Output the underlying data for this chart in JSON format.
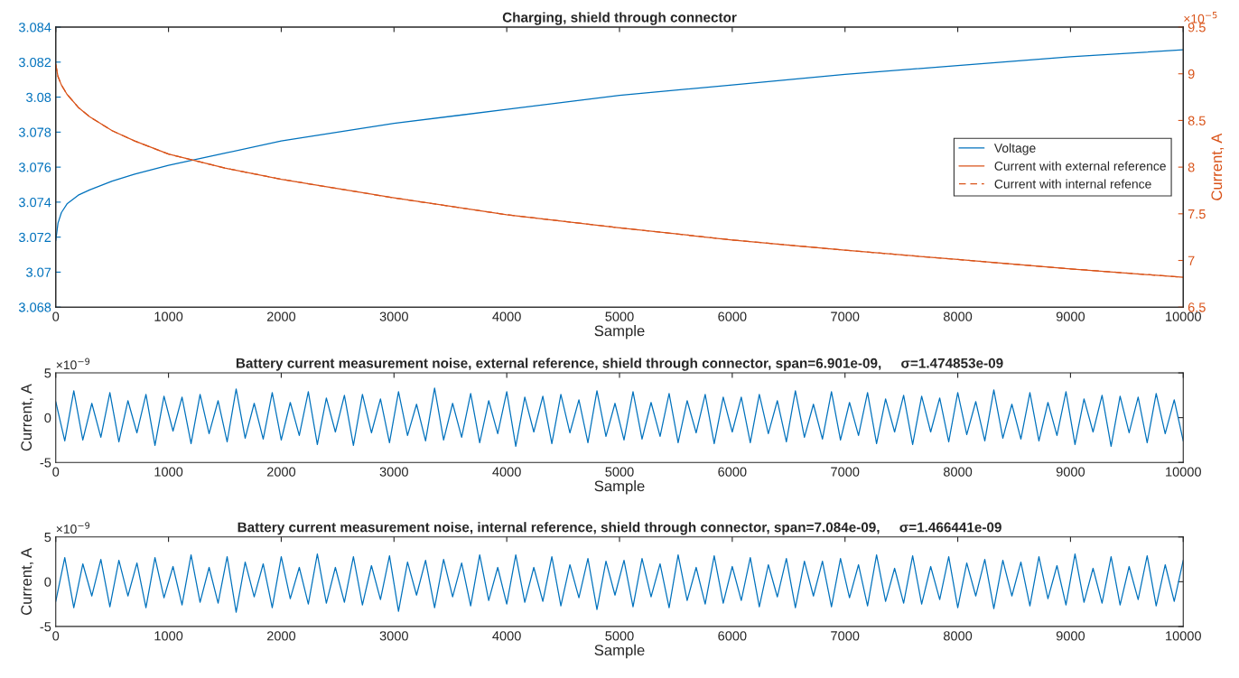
{
  "chart_data": [
    {
      "type": "line",
      "title": "Charging, shield through connector",
      "xlabel": "Sample",
      "y2label": "Current, A",
      "xlim": [
        0,
        10000
      ],
      "xticks": [
        0,
        1000,
        2000,
        3000,
        4000,
        5000,
        6000,
        7000,
        8000,
        9000,
        10000
      ],
      "ylim": [
        3.068,
        3.084
      ],
      "yticks": [
        3.068,
        3.07,
        3.072,
        3.074,
        3.076,
        3.078,
        3.08,
        3.082,
        3.084
      ],
      "y2lim": [
        6.5,
        9.5
      ],
      "y2ticks": [
        6.5,
        7,
        7.5,
        8,
        8.5,
        9,
        9.5
      ],
      "annotations": [
        "×10$^{−5}$"
      ],
      "legend": "right",
      "grid": false,
      "x": [
        0,
        20,
        50,
        100,
        200,
        300,
        500,
        700,
        1000,
        1500,
        2000,
        3000,
        4000,
        5000,
        6000,
        7000,
        8000,
        9000,
        10000
      ],
      "series": [
        {
          "name": "Voltage",
          "color": "#0072bd",
          "line_style": "solid",
          "values": [
            3.0718,
            3.0728,
            3.0734,
            3.0739,
            3.0744,
            3.0747,
            3.0752,
            3.0756,
            3.0761,
            3.0768,
            3.0775,
            3.0785,
            3.0793,
            3.0801,
            3.0807,
            3.0813,
            3.0818,
            3.0823,
            3.0827
          ]
        },
        {
          "name": "Current with external reference",
          "color": "#d95319",
          "axis": "y2",
          "line_style": "solid",
          "values": [
            9.1,
            8.97,
            8.88,
            8.78,
            8.64,
            8.54,
            8.39,
            8.28,
            8.14,
            7.99,
            7.87,
            7.67,
            7.49,
            7.35,
            7.22,
            7.11,
            7.01,
            6.91,
            6.82
          ]
        },
        {
          "name": "Current with internal refence",
          "color": "#d95319",
          "axis": "y2",
          "line_style": "dashed",
          "values": [
            9.1,
            8.97,
            8.88,
            8.78,
            8.64,
            8.54,
            8.39,
            8.28,
            8.14,
            7.99,
            7.87,
            7.67,
            7.49,
            7.35,
            7.22,
            7.11,
            7.01,
            6.91,
            6.82
          ]
        }
      ]
    },
    {
      "type": "line",
      "title": "Battery current measurement noise, external reference, shield through connector, span=6.901e-09,     σ=1.474853e-09",
      "xlabel": "Sample",
      "ylabel": "Current, A",
      "xlim": [
        0,
        10000
      ],
      "xticks": [
        0,
        1000,
        2000,
        3000,
        4000,
        5000,
        6000,
        7000,
        8000,
        9000,
        10000
      ],
      "ylim": [
        -5,
        5
      ],
      "yticks": [
        -5,
        0,
        5
      ],
      "annotations": [
        "×10$^{−9}$"
      ],
      "grid": false,
      "x": [
        0,
        80,
        160,
        240,
        320,
        400,
        480,
        560,
        640,
        720,
        800,
        880,
        960,
        1040,
        1120,
        1200,
        1280,
        1360,
        1440,
        1520,
        1600,
        1680,
        1760,
        1840,
        1920,
        2000,
        2080,
        2160,
        2240,
        2320,
        2400,
        2480,
        2560,
        2640,
        2720,
        2800,
        2880,
        2960,
        3040,
        3120,
        3200,
        3280,
        3360,
        3440,
        3520,
        3600,
        3680,
        3760,
        3840,
        3920,
        4000,
        4080,
        4160,
        4240,
        4320,
        4400,
        4480,
        4560,
        4640,
        4720,
        4800,
        4880,
        4960,
        5040,
        5120,
        5200,
        5280,
        5360,
        5440,
        5520,
        5600,
        5680,
        5760,
        5840,
        5920,
        6000,
        6080,
        6160,
        6240,
        6320,
        6400,
        6480,
        6560,
        6640,
        6720,
        6800,
        6880,
        6960,
        7040,
        7120,
        7200,
        7280,
        7360,
        7440,
        7520,
        7600,
        7680,
        7760,
        7840,
        7920,
        8000,
        8080,
        8160,
        8240,
        8320,
        8400,
        8480,
        8560,
        8640,
        8720,
        8800,
        8880,
        8960,
        9040,
        9120,
        9200,
        9280,
        9360,
        9440,
        9520,
        9600,
        9680,
        9760,
        9840,
        9920,
        10000
      ],
      "series": [
        {
          "color": "#0072bd",
          "values": [
            1.8,
            -2.6,
            3.0,
            -2.5,
            1.6,
            -2.2,
            2.8,
            -2.7,
            1.9,
            -1.7,
            2.6,
            -3.1,
            2.4,
            -1.5,
            2.3,
            -2.9,
            2.6,
            -1.8,
            1.9,
            -2.7,
            3.2,
            -2.3,
            1.6,
            -2.4,
            2.8,
            -2.5,
            1.7,
            -2.0,
            2.9,
            -3.0,
            2.2,
            -1.6,
            2.5,
            -3.1,
            2.6,
            -1.7,
            2.1,
            -2.8,
            2.9,
            -2.0,
            1.5,
            -2.6,
            3.3,
            -2.5,
            1.6,
            -2.2,
            2.7,
            -2.8,
            1.9,
            -1.8,
            2.9,
            -3.2,
            2.3,
            -1.6,
            2.4,
            -2.9,
            2.6,
            -1.7,
            2.0,
            -2.8,
            3.0,
            -2.1,
            1.6,
            -2.5,
            2.9,
            -2.4,
            1.7,
            -2.1,
            2.7,
            -2.8,
            1.9,
            -1.7,
            2.6,
            -2.9,
            2.3,
            -1.6,
            2.3,
            -2.8,
            2.6,
            -1.8,
            1.9,
            -2.7,
            3.0,
            -2.2,
            1.5,
            -2.4,
            2.9,
            -2.5,
            1.7,
            -2.0,
            2.8,
            -2.9,
            2.1,
            -1.6,
            2.5,
            -3.0,
            2.4,
            -1.6,
            2.2,
            -2.7,
            2.8,
            -1.9,
            1.8,
            -2.6,
            3.1,
            -2.3,
            1.5,
            -2.4,
            2.8,
            -2.6,
            1.7,
            -2.0,
            2.9,
            -3.0,
            2.1,
            -1.6,
            2.5,
            -3.2,
            2.4,
            -1.7,
            2.3,
            -2.8,
            2.7,
            -1.8,
            2.0,
            -2.6
          ]
        }
      ]
    },
    {
      "type": "line",
      "title": "Battery current measurement noise, internal reference, shield through connector, span=7.084e-09,     σ=1.466441e-09",
      "xlabel": "Sample",
      "ylabel": "Current, A",
      "xlim": [
        0,
        10000
      ],
      "xticks": [
        0,
        1000,
        2000,
        3000,
        4000,
        5000,
        6000,
        7000,
        8000,
        9000,
        10000
      ],
      "ylim": [
        -5,
        5
      ],
      "yticks": [
        -5,
        0,
        5
      ],
      "annotations": [
        "×10$^{−9}$"
      ],
      "grid": false,
      "x": [
        0,
        80,
        160,
        240,
        320,
        400,
        480,
        560,
        640,
        720,
        800,
        880,
        960,
        1040,
        1120,
        1200,
        1280,
        1360,
        1440,
        1520,
        1600,
        1680,
        1760,
        1840,
        1920,
        2000,
        2080,
        2160,
        2240,
        2320,
        2400,
        2480,
        2560,
        2640,
        2720,
        2800,
        2880,
        2960,
        3040,
        3120,
        3200,
        3280,
        3360,
        3440,
        3520,
        3600,
        3680,
        3760,
        3840,
        3920,
        4000,
        4080,
        4160,
        4240,
        4320,
        4400,
        4480,
        4560,
        4640,
        4720,
        4800,
        4880,
        4960,
        5040,
        5120,
        5200,
        5280,
        5360,
        5440,
        5520,
        5600,
        5680,
        5760,
        5840,
        5920,
        6000,
        6080,
        6160,
        6240,
        6320,
        6400,
        6480,
        6560,
        6640,
        6720,
        6800,
        6880,
        6960,
        7040,
        7120,
        7200,
        7280,
        7360,
        7440,
        7520,
        7600,
        7680,
        7760,
        7840,
        7920,
        8000,
        8080,
        8160,
        8240,
        8320,
        8400,
        8480,
        8560,
        8640,
        8720,
        8800,
        8880,
        8960,
        9040,
        9120,
        9200,
        9280,
        9360,
        9440,
        9520,
        9600,
        9680,
        9760,
        9840,
        9920,
        10000
      ],
      "series": [
        {
          "color": "#0072bd",
          "values": [
            -2.2,
            2.7,
            -2.9,
            2.0,
            -1.6,
            2.5,
            -2.8,
            2.4,
            -1.6,
            2.1,
            -2.9,
            2.7,
            -1.8,
            1.7,
            -2.6,
            3.0,
            -2.3,
            1.6,
            -2.4,
            2.8,
            -3.4,
            2.2,
            -1.7,
            2.0,
            -2.9,
            2.8,
            -1.9,
            1.6,
            -2.5,
            3.1,
            -2.4,
            1.6,
            -2.3,
            2.8,
            -2.6,
            1.8,
            -2.0,
            2.9,
            -3.3,
            2.2,
            -1.5,
            2.4,
            -2.9,
            2.5,
            -1.7,
            2.1,
            -2.7,
            3.0,
            -2.1,
            1.6,
            -2.5,
            3.0,
            -2.3,
            1.6,
            -2.2,
            2.8,
            -2.7,
            1.9,
            -1.8,
            2.6,
            -3.1,
            2.3,
            -1.5,
            2.4,
            -2.8,
            2.6,
            -1.7,
            2.0,
            -2.9,
            3.0,
            -2.1,
            1.6,
            -2.5,
            2.9,
            -2.4,
            1.7,
            -2.1,
            2.7,
            -2.8,
            1.9,
            -1.7,
            2.6,
            -2.9,
            2.3,
            -1.6,
            2.3,
            -2.8,
            2.6,
            -1.8,
            1.9,
            -2.7,
            3.0,
            -2.2,
            1.5,
            -2.4,
            2.9,
            -2.5,
            1.7,
            -2.0,
            2.8,
            -2.9,
            2.1,
            -1.6,
            2.5,
            -3.0,
            2.4,
            -1.6,
            2.2,
            -2.7,
            2.8,
            -1.9,
            1.8,
            -2.6,
            3.1,
            -2.3,
            1.5,
            -2.4,
            2.8,
            -2.6,
            1.7,
            -2.0,
            2.9,
            -2.7,
            1.9,
            -2.2,
            2.4
          ]
        }
      ]
    }
  ]
}
